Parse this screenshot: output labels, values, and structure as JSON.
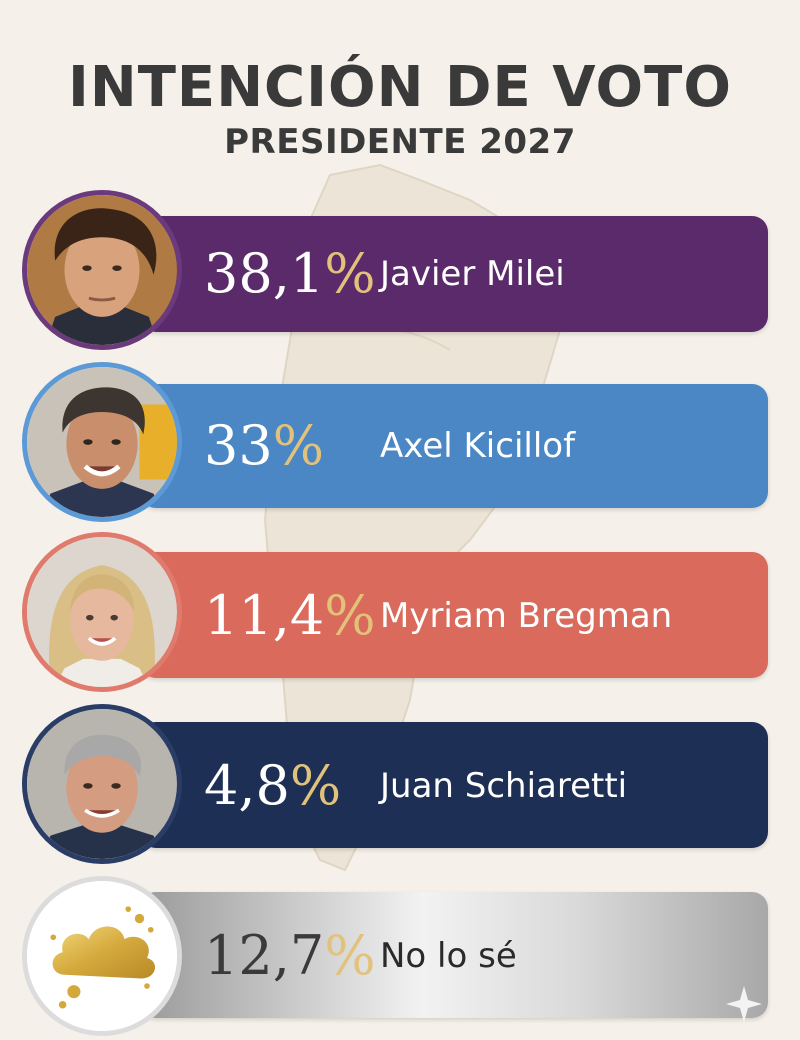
{
  "header": {
    "title": "INTENCIÓN DE VOTO",
    "subtitle": "PRESIDENTE 2027"
  },
  "chart_data": {
    "type": "bar",
    "title": "INTENCIÓN DE VOTO",
    "subtitle": "PRESIDENTE 2027",
    "categories": [
      "Javier Milei",
      "Axel Kicillof",
      "Myriam Bregman",
      "Juan Schiaretti",
      "No lo sé"
    ],
    "values": [
      38.1,
      33,
      11.4,
      4.8,
      12.7
    ],
    "value_labels": [
      "38,1",
      "33",
      "11,4",
      "4,8",
      "12,7"
    ],
    "unit": "%",
    "colors": [
      "#5b2a6b",
      "#4a87c4",
      "#d96a5c",
      "#1d2f55",
      "#c9c9c9"
    ],
    "accent_color": "#e2c27a"
  },
  "candidates": [
    {
      "name": "Javier Milei",
      "value": "38,1",
      "icon": "portrait-milei-icon"
    },
    {
      "name": "Axel Kicillof",
      "value": "33",
      "icon": "portrait-kicillof-icon"
    },
    {
      "name": "Myriam Bregman",
      "value": "11,4",
      "icon": "portrait-bregman-icon"
    },
    {
      "name": "Juan Schiaretti",
      "value": "4,8",
      "icon": "portrait-schiaretti-icon"
    },
    {
      "name": "No lo sé",
      "value": "12,7",
      "icon": "gold-cloud-icon"
    }
  ],
  "percent_sign": "%"
}
